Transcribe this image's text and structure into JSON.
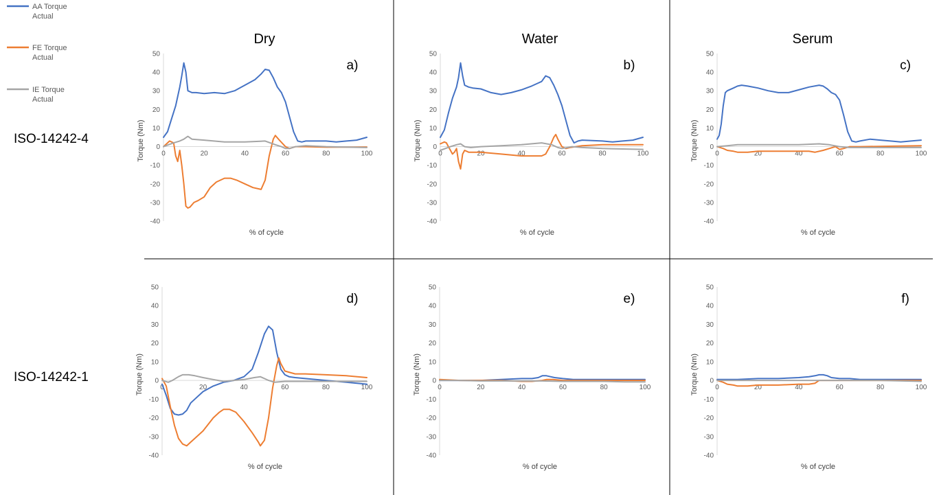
{
  "legend": [
    {
      "series": "AA Torque Actual",
      "line1": "AA Torque",
      "line2": "Actual",
      "color": "#4472c4"
    },
    {
      "series": "FE Torque Actual",
      "line1": "FE Torque",
      "line2": "Actual",
      "color": "#ed7d31"
    },
    {
      "series": "IE Torque Actual",
      "line1": "IE Torque",
      "line2": "Actual",
      "color": "#a5a5a5"
    }
  ],
  "columns": [
    "Dry",
    "Water",
    "Serum"
  ],
  "rows": [
    "ISO-14242-4",
    "ISO-14242-1"
  ],
  "chart_data": [
    {
      "type": "line",
      "panel": "a)",
      "standard": "ISO-14242-4",
      "condition": "Dry",
      "xlabel": "% of cycle",
      "ylabel": "Torque (Nm)",
      "xlim": [
        0,
        100
      ],
      "ylim": [
        -40,
        50
      ],
      "xticks": [
        0,
        20,
        40,
        60,
        80,
        100
      ],
      "yticks": [
        -40,
        -30,
        -20,
        -10,
        0,
        10,
        20,
        30,
        40,
        50
      ],
      "series": [
        {
          "name": "AA Torque Actual",
          "color": "#4472c4",
          "x": [
            0,
            2,
            4,
            6,
            8,
            9,
            10,
            11,
            12,
            14,
            16,
            20,
            25,
            30,
            35,
            40,
            45,
            48,
            50,
            52,
            54,
            56,
            58,
            60,
            62,
            64,
            66,
            68,
            70,
            80,
            85,
            90,
            95,
            100
          ],
          "y": [
            5,
            8,
            15,
            22,
            32,
            38,
            45,
            40,
            30,
            29,
            29,
            28.5,
            29,
            28.5,
            30,
            33,
            36,
            39,
            41.5,
            41,
            37,
            32,
            29,
            24,
            16,
            8,
            3,
            2.5,
            3,
            3,
            2.5,
            3,
            3.5,
            5
          ]
        },
        {
          "name": "FE Torque Actual",
          "color": "#ed7d31",
          "x": [
            0,
            3,
            5,
            6,
            7,
            8,
            9,
            10,
            11,
            12,
            13,
            15,
            17,
            20,
            23,
            26,
            30,
            33,
            36,
            40,
            44,
            48,
            50,
            52,
            54,
            55,
            57,
            60,
            62,
            65,
            70,
            80,
            100
          ],
          "y": [
            0,
            3,
            2,
            -5,
            -8,
            -2,
            -10,
            -20,
            -32,
            -33,
            -32.5,
            -30,
            -29,
            -27,
            -22,
            -19,
            -17,
            -17,
            -18,
            -20,
            -22,
            -23,
            -18,
            -5,
            4,
            6,
            3.5,
            0,
            -1,
            0,
            0,
            -0.3,
            -0.2
          ]
        },
        {
          "name": "IE Torque Actual",
          "color": "#a5a5a5",
          "x": [
            0,
            5,
            8,
            10,
            12,
            14,
            20,
            30,
            40,
            50,
            55,
            58,
            60,
            62,
            65,
            70,
            80,
            100
          ],
          "y": [
            0,
            2,
            3,
            4,
            5.5,
            4,
            3.5,
            2.5,
            2.5,
            3,
            1,
            0,
            -1,
            -1,
            0,
            0.5,
            0,
            -0.5
          ]
        }
      ]
    },
    {
      "type": "line",
      "panel": "b)",
      "standard": "ISO-14242-4",
      "condition": "Water",
      "xlabel": "% of cycle",
      "ylabel": "Torque (Nm)",
      "xlim": [
        0,
        100
      ],
      "ylim": [
        -40,
        50
      ],
      "xticks": [
        0,
        20,
        40,
        60,
        80,
        100
      ],
      "yticks": [
        -40,
        -30,
        -20,
        -10,
        0,
        10,
        20,
        30,
        40,
        50
      ],
      "series": [
        {
          "name": "AA Torque Actual",
          "color": "#4472c4",
          "x": [
            0,
            2,
            4,
            6,
            8,
            9,
            10,
            11,
            12,
            14,
            16,
            20,
            25,
            30,
            35,
            40,
            45,
            48,
            50,
            52,
            54,
            56,
            58,
            60,
            62,
            64,
            66,
            68,
            70,
            80,
            85,
            90,
            95,
            100
          ],
          "y": [
            5,
            9,
            18,
            26,
            32,
            37,
            45,
            38,
            33,
            32,
            31.5,
            31,
            29,
            28,
            29,
            30.5,
            32.5,
            34,
            35,
            38,
            37,
            33,
            28,
            22,
            14,
            6,
            2,
            3,
            3.5,
            3,
            2.5,
            3,
            3.5,
            5
          ]
        },
        {
          "name": "FE Torque Actual",
          "color": "#ed7d31",
          "x": [
            0,
            1,
            2,
            3,
            4,
            5,
            6,
            7,
            8,
            9,
            10,
            11,
            12,
            14,
            20,
            30,
            40,
            50,
            52,
            54,
            56,
            57,
            58,
            60,
            62,
            64,
            70,
            80,
            100
          ],
          "y": [
            1.5,
            2,
            2.5,
            2,
            0,
            -2,
            -4,
            -3,
            -1,
            -8,
            -12,
            -4,
            -2,
            -3,
            -3,
            -4,
            -5,
            -5,
            -4,
            0,
            5,
            6.5,
            4,
            0,
            -1,
            -0.5,
            0.5,
            1,
            1
          ]
        },
        {
          "name": "IE Torque Actual",
          "color": "#a5a5a5",
          "x": [
            0,
            5,
            8,
            10,
            12,
            15,
            20,
            30,
            40,
            50,
            55,
            58,
            60,
            65,
            70,
            80,
            100
          ],
          "y": [
            -2,
            0,
            1,
            1.5,
            0,
            -0.5,
            0,
            0.5,
            1,
            2,
            1,
            -0.5,
            -1,
            0,
            -0.5,
            -1,
            -1.5
          ]
        }
      ]
    },
    {
      "type": "line",
      "panel": "c)",
      "standard": "ISO-14242-4",
      "condition": "Serum",
      "xlabel": "% of cycle",
      "ylabel": "Torque (Nm)",
      "xlim": [
        0,
        100
      ],
      "ylim": [
        -40,
        50
      ],
      "xticks": [
        0,
        20,
        40,
        60,
        80,
        100
      ],
      "yticks": [
        -40,
        -30,
        -20,
        -10,
        0,
        10,
        20,
        30,
        40,
        50
      ],
      "series": [
        {
          "name": "AA Torque Actual",
          "color": "#4472c4",
          "x": [
            0,
            1,
            2,
            3,
            4,
            5,
            8,
            10,
            12,
            15,
            20,
            25,
            30,
            35,
            40,
            45,
            50,
            52,
            54,
            56,
            58,
            60,
            62,
            64,
            66,
            68,
            70,
            75,
            80,
            85,
            90,
            95,
            100
          ],
          "y": [
            4,
            6,
            12,
            22,
            29,
            30,
            31.5,
            32.5,
            33,
            32.5,
            31.5,
            30,
            29,
            29,
            30.5,
            32,
            33,
            32.5,
            31,
            29,
            28,
            25,
            17,
            8,
            3,
            2.5,
            3,
            4,
            3.5,
            3,
            2.5,
            3,
            3.5
          ]
        },
        {
          "name": "FE Torque Actual",
          "color": "#ed7d31",
          "x": [
            0,
            3,
            5,
            8,
            10,
            15,
            20,
            30,
            40,
            45,
            48,
            52,
            55,
            58,
            60,
            62,
            65,
            70,
            100
          ],
          "y": [
            0,
            -1,
            -2,
            -2.5,
            -3,
            -3,
            -2.5,
            -2.5,
            -2.5,
            -2.5,
            -3,
            -2,
            -1,
            0,
            -1.5,
            -1,
            0,
            0,
            0.5
          ]
        },
        {
          "name": "IE Torque Actual",
          "color": "#a5a5a5",
          "x": [
            0,
            5,
            10,
            20,
            30,
            40,
            50,
            55,
            60,
            65,
            70,
            80,
            100
          ],
          "y": [
            0,
            0.5,
            1,
            1,
            1,
            1,
            1.5,
            1,
            0,
            -0.5,
            -0.5,
            -0.5,
            -0.5
          ]
        }
      ]
    },
    {
      "type": "line",
      "panel": "d)",
      "standard": "ISO-14242-1",
      "condition": "Dry",
      "xlabel": "% of cycle",
      "ylabel": "Torque (Nm)",
      "xlim": [
        0,
        100
      ],
      "ylim": [
        -40,
        50
      ],
      "xticks": [
        0,
        20,
        40,
        60,
        80,
        100
      ],
      "yticks": [
        -40,
        -30,
        -20,
        -10,
        0,
        10,
        20,
        30,
        40,
        50
      ],
      "series": [
        {
          "name": "AA Torque Actual",
          "color": "#4472c4",
          "x": [
            0,
            2,
            4,
            6,
            8,
            10,
            12,
            14,
            16,
            20,
            25,
            30,
            35,
            40,
            44,
            47,
            50,
            52,
            54,
            56,
            58,
            60,
            62,
            65,
            70,
            80,
            90,
            100
          ],
          "y": [
            -2,
            -8,
            -15,
            -18,
            -18.5,
            -18,
            -16,
            -12,
            -10,
            -6,
            -3,
            -1,
            0,
            2,
            6,
            15,
            25,
            29,
            27,
            15,
            6,
            3,
            2,
            1.5,
            1,
            0,
            -1,
            -2
          ]
        },
        {
          "name": "FE Torque Actual",
          "color": "#ed7d31",
          "x": [
            0,
            2,
            4,
            6,
            8,
            10,
            12,
            14,
            16,
            20,
            25,
            28,
            30,
            33,
            36,
            40,
            44,
            47,
            48,
            50,
            52,
            54,
            56,
            57,
            58,
            60,
            65,
            70,
            80,
            90,
            100
          ],
          "y": [
            1,
            -3,
            -14,
            -24,
            -31,
            -34,
            -35,
            -33,
            -31,
            -27,
            -20,
            -17,
            -15.5,
            -15.5,
            -17,
            -22,
            -28,
            -33,
            -35,
            -32,
            -20,
            -4,
            8,
            12,
            9,
            5,
            3.5,
            3.5,
            3,
            2.5,
            1.5
          ]
        },
        {
          "name": "IE Torque Actual",
          "color": "#a5a5a5",
          "x": [
            0,
            3,
            5,
            8,
            10,
            13,
            16,
            20,
            25,
            30,
            35,
            40,
            45,
            48,
            50,
            52,
            55,
            60,
            70,
            80,
            100
          ],
          "y": [
            0,
            -1,
            0,
            2,
            3,
            3,
            2.5,
            1.5,
            0.5,
            -0.5,
            0,
            0.5,
            1.5,
            2,
            1,
            0,
            -1,
            -0.5,
            -0.5,
            -0.5,
            -0.5
          ]
        }
      ]
    },
    {
      "type": "line",
      "panel": "e)",
      "standard": "ISO-14242-1",
      "condition": "Water",
      "xlabel": "% of cycle",
      "ylabel": "Torque (Nm)",
      "xlim": [
        0,
        100
      ],
      "ylim": [
        -40,
        50
      ],
      "xticks": [
        0,
        20,
        40,
        60,
        80,
        100
      ],
      "yticks": [
        -40,
        -30,
        -20,
        -10,
        0,
        10,
        20,
        30,
        40,
        50
      ],
      "series": [
        {
          "name": "AA Torque Actual",
          "color": "#4472c4",
          "x": [
            0,
            10,
            20,
            30,
            40,
            45,
            48,
            50,
            52,
            54,
            56,
            60,
            65,
            70,
            80,
            90,
            100
          ],
          "y": [
            0,
            0,
            0,
            0.5,
            1,
            1,
            1.5,
            2.5,
            2.5,
            2,
            1.5,
            1,
            0.5,
            0.5,
            0.5,
            0.5,
            0.5
          ]
        },
        {
          "name": "FE Torque Actual",
          "color": "#ed7d31",
          "x": [
            0,
            10,
            20,
            30,
            40,
            45,
            50,
            52,
            55,
            60,
            70,
            80,
            90,
            100
          ],
          "y": [
            0.5,
            0,
            0,
            0,
            -0.5,
            -0.5,
            0,
            0.5,
            0.5,
            0,
            0,
            0,
            0,
            0
          ]
        },
        {
          "name": "IE Torque Actual",
          "color": "#a5a5a5",
          "x": [
            0,
            10,
            20,
            30,
            40,
            50,
            60,
            70,
            80,
            90,
            100
          ],
          "y": [
            0,
            0,
            -0.3,
            -0.3,
            -0.3,
            -0.3,
            -0.5,
            -0.5,
            -0.5,
            -0.8,
            -0.8
          ]
        }
      ]
    },
    {
      "type": "line",
      "panel": "f)",
      "standard": "ISO-14242-1",
      "condition": "Serum",
      "xlabel": "% of cycle",
      "ylabel": "Torque (Nm)",
      "xlim": [
        0,
        100
      ],
      "ylim": [
        -40,
        50
      ],
      "xticks": [
        0,
        20,
        40,
        60,
        80,
        100
      ],
      "yticks": [
        -40,
        -30,
        -20,
        -10,
        0,
        10,
        20,
        30,
        40,
        50
      ],
      "series": [
        {
          "name": "AA Torque Actual",
          "color": "#4472c4",
          "x": [
            0,
            10,
            20,
            30,
            40,
            45,
            48,
            50,
            52,
            54,
            56,
            60,
            65,
            70,
            80,
            90,
            100
          ],
          "y": [
            0.5,
            0.5,
            1,
            1,
            1.5,
            2,
            2.5,
            3,
            3,
            2.5,
            1.5,
            1,
            1,
            0.5,
            0.5,
            0.5,
            0.5
          ]
        },
        {
          "name": "FE Torque Actual",
          "color": "#ed7d31",
          "x": [
            0,
            3,
            5,
            8,
            10,
            15,
            20,
            30,
            40,
            45,
            48,
            50,
            52,
            55,
            60,
            70,
            80,
            100
          ],
          "y": [
            0,
            -1,
            -2,
            -2.5,
            -3,
            -3,
            -2.5,
            -2.5,
            -2,
            -2,
            -1.5,
            0,
            0,
            0,
            0,
            0,
            0,
            0
          ]
        },
        {
          "name": "IE Torque Actual",
          "color": "#a5a5a5",
          "x": [
            0,
            10,
            20,
            30,
            40,
            50,
            60,
            70,
            80,
            100
          ],
          "y": [
            0,
            0,
            0,
            0,
            0,
            0,
            0,
            0,
            0,
            -0.5
          ]
        }
      ]
    }
  ]
}
